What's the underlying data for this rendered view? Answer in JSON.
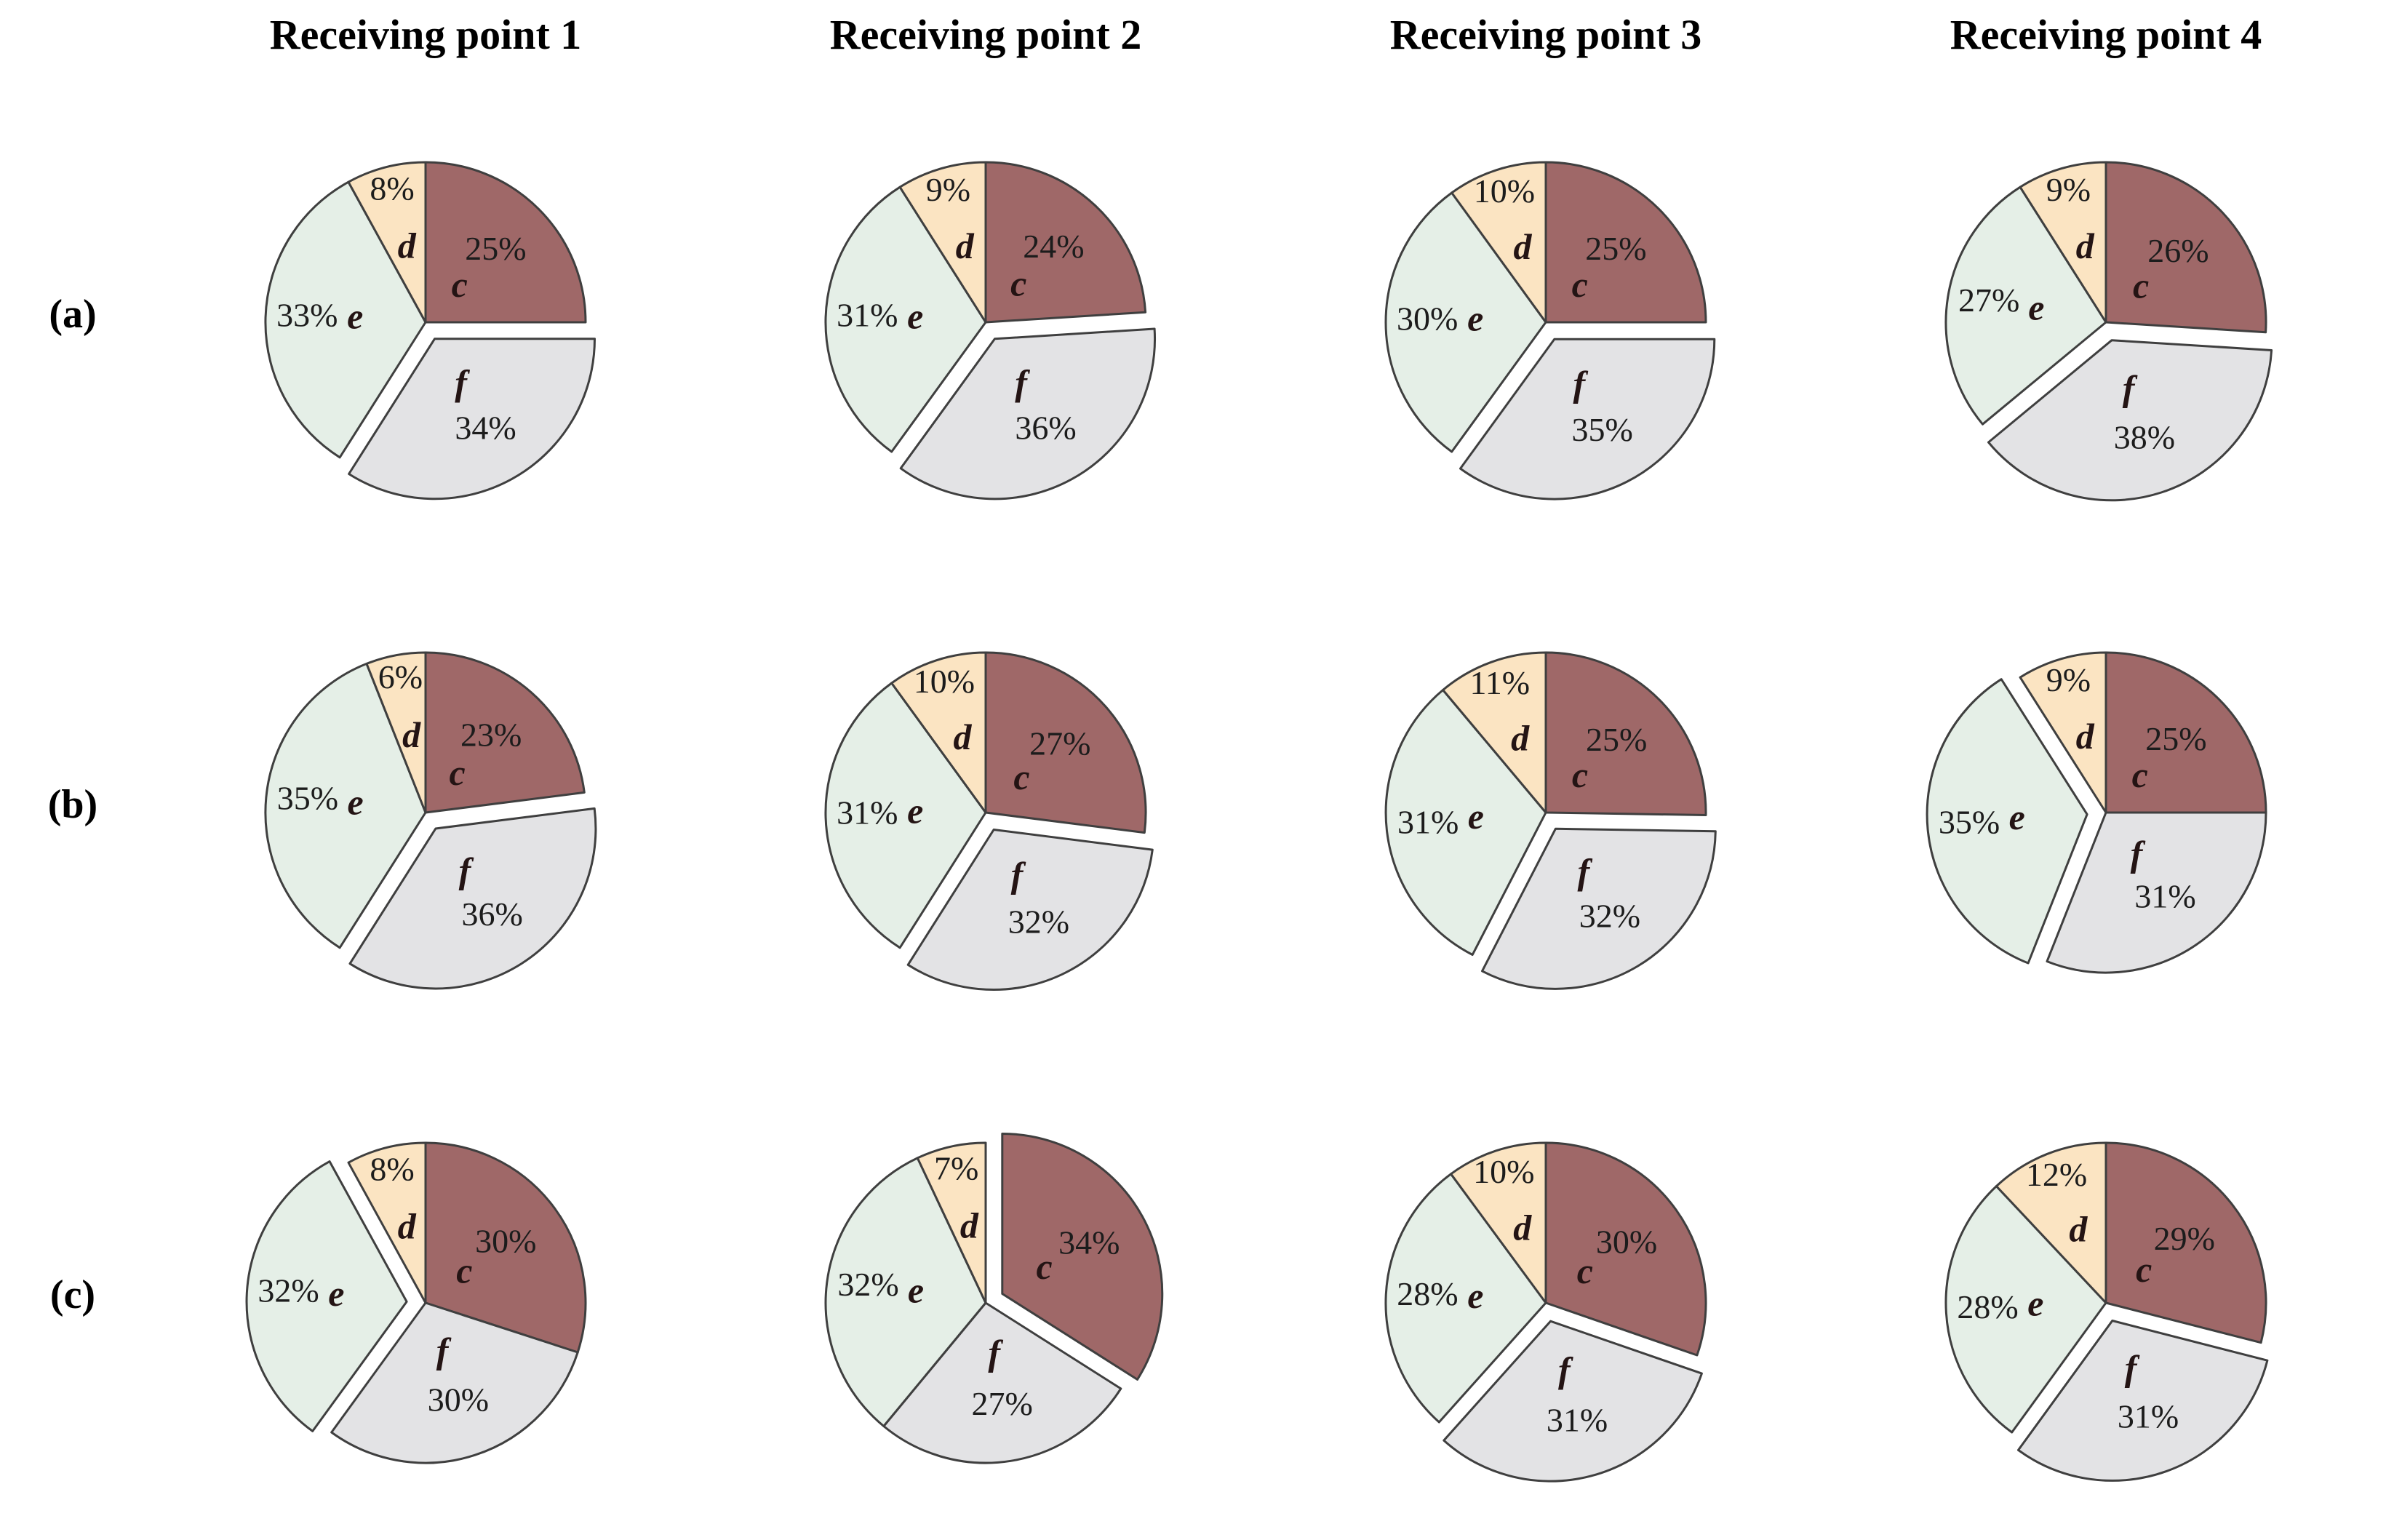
{
  "figure": {
    "description": "Grid of exploded pie charts: composition at four receiving points for three cases",
    "row_labels": [
      "(a)",
      "(b)",
      "(c)"
    ]
  },
  "chart_data": {
    "type": "pie",
    "columns": [
      "Receiving point 1",
      "Receiving point 2",
      "Receiving point 3",
      "Receiving point 4"
    ],
    "slice_order_clockwise_from_top": [
      "c",
      "f",
      "e",
      "d"
    ],
    "start_angle": "12 o'clock, clockwise",
    "legend": "none (slices labeled in place with letter and percent)",
    "colors": {
      "c": "#9f6868",
      "d": "#fbe4c2",
      "e": "#e5efe7",
      "f": "#e3e3e5",
      "stroke": "#3f3f3f",
      "label_text": "#1c1c1c"
    },
    "rows": [
      {
        "label": "(a)",
        "charts": [
          {
            "column": "Receiving point 1",
            "values": {
              "c": 25,
              "f": 34,
              "e": 33,
              "d": 8
            },
            "labels": {
              "c": "25%",
              "f": "34%",
              "e": "33%",
              "d": "8%"
            },
            "exploded": "f"
          },
          {
            "column": "Receiving point 2",
            "values": {
              "c": 24,
              "f": 36,
              "e": 31,
              "d": 9
            },
            "labels": {
              "c": "24%",
              "f": "36%",
              "e": "31%",
              "d": "9%"
            },
            "exploded": "f"
          },
          {
            "column": "Receiving point 3",
            "values": {
              "c": 25,
              "f": 35,
              "e": 30,
              "d": 10
            },
            "labels": {
              "c": "25%",
              "f": "35%",
              "e": "30%",
              "d": "10%"
            },
            "exploded": "f"
          },
          {
            "column": "Receiving point 4",
            "values": {
              "c": 26,
              "f": 38,
              "e": 27,
              "d": 9
            },
            "labels": {
              "c": "26%",
              "f": "38%",
              "e": "27%",
              "d": "9%"
            },
            "exploded": "f"
          }
        ]
      },
      {
        "label": "(b)",
        "charts": [
          {
            "column": "Receiving point 1",
            "values": {
              "c": 23,
              "f": 36,
              "e": 35,
              "d": 6
            },
            "labels": {
              "c": "23%",
              "f": "36%",
              "e": "35%",
              "d": "6%"
            },
            "exploded": "f"
          },
          {
            "column": "Receiving point 2",
            "values": {
              "c": 27,
              "f": 32,
              "e": 31,
              "d": 10
            },
            "labels": {
              "c": "27%",
              "f": "32%",
              "e": "31%",
              "d": "10%"
            },
            "exploded": "f"
          },
          {
            "column": "Receiving point 3",
            "values": {
              "c": 25,
              "f": 32,
              "e": 31,
              "d": 11
            },
            "labels": {
              "c": "25%",
              "f": "32%",
              "e": "31%",
              "d": "11%"
            },
            "exploded": "f"
          },
          {
            "column": "Receiving point 4",
            "values": {
              "c": 25,
              "f": 31,
              "e": 35,
              "d": 9
            },
            "labels": {
              "c": "25%",
              "f": "31%",
              "e": "35%",
              "d": "9%"
            },
            "exploded": "e"
          }
        ]
      },
      {
        "label": "(c)",
        "charts": [
          {
            "column": "Receiving point 1",
            "values": {
              "c": 30,
              "f": 30,
              "e": 32,
              "d": 8
            },
            "labels": {
              "c": "30%",
              "f": "30%",
              "e": "32%",
              "d": "8%"
            },
            "exploded": "e"
          },
          {
            "column": "Receiving point 2",
            "values": {
              "c": 34,
              "f": 27,
              "e": 32,
              "d": 7
            },
            "labels": {
              "c": "34%",
              "f": "27%",
              "e": "32%",
              "d": "7%"
            },
            "exploded": "c"
          },
          {
            "column": "Receiving point 3",
            "values": {
              "c": 30,
              "f": 31,
              "e": 28,
              "d": 10
            },
            "labels": {
              "c": "30%",
              "f": "31%",
              "e": "28%",
              "d": "10%"
            },
            "exploded": "f"
          },
          {
            "column": "Receiving point 4",
            "values": {
              "c": 29,
              "f": 31,
              "e": 28,
              "d": 12
            },
            "labels": {
              "c": "29%",
              "f": "31%",
              "e": "28%",
              "d": "12%"
            },
            "exploded": "f"
          }
        ]
      }
    ]
  }
}
